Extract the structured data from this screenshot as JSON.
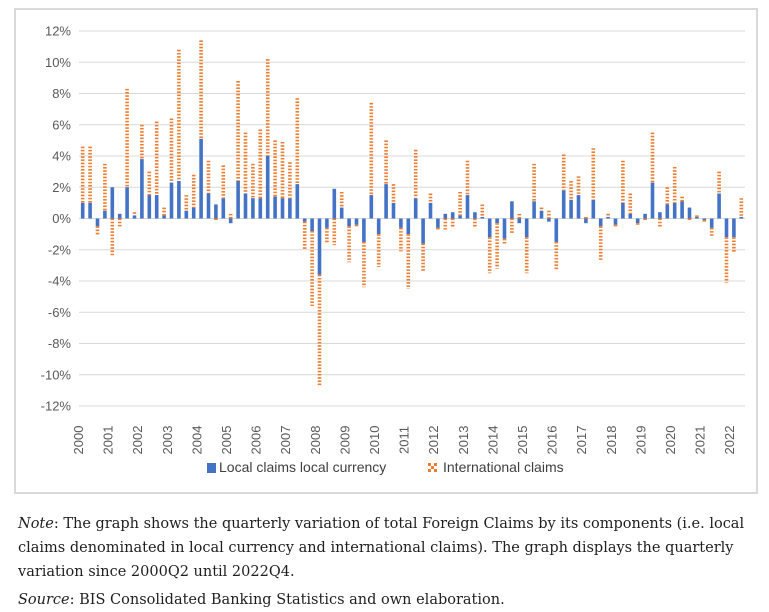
{
  "chart_data": {
    "type": "bar",
    "stacked": true,
    "title": "",
    "xlabel": "",
    "ylabel": "",
    "ylim": [
      -12,
      12
    ],
    "yticks": [
      "12%",
      "10%",
      "8%",
      "6%",
      "4%",
      "2%",
      "0%",
      "-2%",
      "-4%",
      "-6%",
      "-8%",
      "-10%",
      "-12%"
    ],
    "ytick_values": [
      12,
      10,
      8,
      6,
      4,
      2,
      0,
      -2,
      -4,
      -6,
      -8,
      -10,
      -12
    ],
    "xtick_labels": [
      "2000",
      "2001",
      "2002",
      "2003",
      "2004",
      "2005",
      "2006",
      "2007",
      "2008",
      "2009",
      "2010",
      "2011",
      "2012",
      "2013",
      "2014",
      "2015",
      "2016",
      "2017",
      "2018",
      "2019",
      "2020",
      "2021",
      "2022"
    ],
    "grid": "horizontal",
    "legend_position": "bottom",
    "series": [
      {
        "name": "Local claims local currency",
        "color": "#4472C4",
        "values": [
          1.0,
          1.0,
          -0.5,
          0.5,
          2.0,
          0.3,
          2.0,
          0.2,
          3.8,
          1.5,
          1.5,
          0.2,
          2.3,
          2.4,
          0.5,
          0.7,
          5.1,
          1.6,
          0.9,
          1.3,
          -0.3,
          2.4,
          1.6,
          1.3,
          1.3,
          4.0,
          1.4,
          1.3,
          1.3,
          2.2,
          -0.2,
          -0.8,
          -3.6,
          -0.6,
          1.9,
          0.7,
          -0.5,
          -0.4,
          -1.5,
          1.5,
          -1.0,
          2.2,
          1.0,
          -0.6,
          -1.0,
          1.3,
          -1.6,
          1.0,
          -0.6,
          0.3,
          0.4,
          0.2,
          1.5,
          0.4,
          0.1,
          -1.2,
          -0.3,
          -1.3,
          1.1,
          -0.3,
          -1.2,
          1.1,
          0.5,
          -0.2,
          -1.5,
          1.8,
          1.2,
          1.5,
          -0.3,
          1.2,
          -0.5,
          0.1,
          -0.4,
          1.0,
          0.3,
          -0.3,
          0.3,
          2.3,
          0.4,
          0.9,
          1.0,
          1.1,
          0.7,
          0.1,
          -0.1,
          -0.6,
          1.6,
          -1.2,
          -1.2,
          0.1
        ]
      },
      {
        "name": "International claims",
        "color": "#ED7D31",
        "values": [
          3.6,
          3.6,
          -0.6,
          3.0,
          -2.4,
          -0.5,
          6.3,
          0.2,
          2.2,
          1.5,
          4.7,
          0.5,
          4.1,
          8.4,
          1.0,
          2.1,
          6.3,
          2.1,
          -0.2,
          2.1,
          0.3,
          6.4,
          3.9,
          2.2,
          4.4,
          6.2,
          3.6,
          3.6,
          2.3,
          5.5,
          -1.8,
          -4.8,
          -7.1,
          -1.0,
          -1.7,
          1.0,
          -2.3,
          -0.1,
          -2.9,
          5.9,
          -2.1,
          2.8,
          1.2,
          -1.5,
          -3.5,
          3.1,
          -1.8,
          0.6,
          -0.1,
          -0.7,
          -0.6,
          1.5,
          2.2,
          -0.6,
          0.8,
          -2.3,
          -2.9,
          -0.3,
          -1.0,
          0.3,
          -2.3,
          2.4,
          0.2,
          0.5,
          -1.8,
          2.3,
          1.2,
          1.2,
          0.1,
          3.3,
          -2.2,
          0.2,
          -0.2,
          2.7,
          1.3,
          -0.1,
          -0.2,
          3.2,
          -0.6,
          1.1,
          2.3,
          0.3,
          -0.1,
          0.1,
          -0.2,
          -0.5,
          1.4,
          -2.9,
          -1.0,
          1.2
        ]
      }
    ]
  },
  "note": {
    "note_label": "Note",
    "note_text": ": The graph shows the quarterly variation of total Foreign Claims by its components (i.e. local claims denominated in local currency and international claims). The graph displays the quarterly variation since 2000Q2 until 2022Q4.",
    "source_label": "Source",
    "source_text": ": BIS Consolidated Banking Statistics and own elaboration."
  }
}
